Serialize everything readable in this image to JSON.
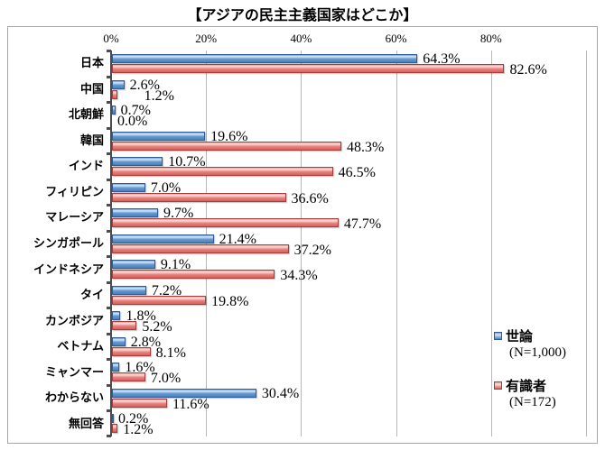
{
  "title": "【アジアの民主主義国家はどこか】",
  "chart_data": {
    "type": "bar",
    "orientation": "horizontal",
    "title": "【アジアの民主主義国家はどこか】",
    "categories": [
      "日本",
      "中国",
      "北朝鮮",
      "韓国",
      "インド",
      "フィリピン",
      "マレーシア",
      "シンガポール",
      "インドネシア",
      "タイ",
      "カンボジア",
      "ベトナム",
      "ミャンマー",
      "わからない",
      "無回答"
    ],
    "series": [
      {
        "name": "世論",
        "note": "(N=1,000)",
        "color": "#4a81bb",
        "values": [
          64.3,
          2.6,
          0.7,
          19.6,
          10.7,
          7.0,
          9.7,
          21.4,
          9.1,
          7.2,
          1.8,
          2.8,
          1.6,
          30.4,
          0.2
        ]
      },
      {
        "name": "有識者",
        "note": "(N=172)",
        "color": "#d75f5c",
        "values": [
          82.6,
          1.2,
          0.0,
          48.3,
          46.5,
          36.6,
          47.7,
          37.2,
          34.3,
          19.8,
          5.2,
          8.1,
          7.0,
          11.6,
          1.2
        ]
      }
    ],
    "x_ticks": [
      "0%",
      "20%",
      "40%",
      "60%",
      "80%"
    ],
    "xlim": [
      0,
      100
    ],
    "value_suffix": "%",
    "grid": "vertical",
    "legend_position": "right-bottom-inside"
  }
}
